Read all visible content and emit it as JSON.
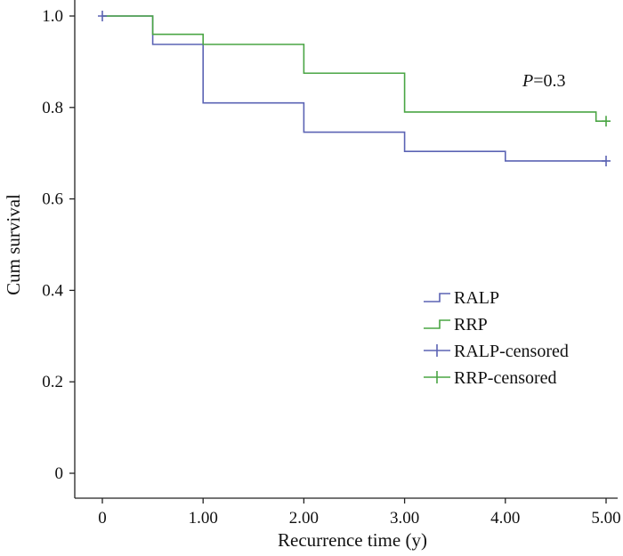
{
  "chart_data": {
    "type": "line",
    "style": "step (Kaplan-Meier survival curve)",
    "title": "",
    "xlabel": "Recurrence time (y)",
    "ylabel": "Cum survival",
    "xlim": [
      0,
      5
    ],
    "ylim": [
      0,
      1
    ],
    "x_ticks": [
      0,
      1,
      2,
      3,
      4,
      5
    ],
    "x_tick_labels": [
      "0",
      "1.00",
      "2.00",
      "3.00",
      "4.00",
      "5.00"
    ],
    "y_ticks": [
      0,
      0.2,
      0.4,
      0.6,
      0.8,
      1.0
    ],
    "y_tick_labels": [
      "0",
      "0.2",
      "0.4",
      "0.6",
      "0.8",
      "1.0"
    ],
    "grid": false,
    "legend_position": "right, lower-middle",
    "annotation": {
      "italic": "P",
      "text": "=0.3"
    },
    "series": [
      {
        "name": "RALP",
        "color": "#5b63b4",
        "steps": [
          [
            0,
            1.0
          ],
          [
            0.5,
            0.938
          ],
          [
            1.0,
            0.81
          ],
          [
            2.0,
            0.746
          ],
          [
            3.0,
            0.704
          ],
          [
            4.0,
            0.683
          ],
          [
            5.0,
            0.683
          ]
        ],
        "censored_name": "RALP-censored",
        "censored": [
          [
            0,
            1.0
          ],
          [
            5.0,
            0.683
          ]
        ]
      },
      {
        "name": "RRP",
        "color": "#4aa544",
        "steps": [
          [
            0,
            1.0
          ],
          [
            0.5,
            0.96
          ],
          [
            1.0,
            0.938
          ],
          [
            2.0,
            0.875
          ],
          [
            3.0,
            0.79
          ],
          [
            4.9,
            0.77
          ],
          [
            5.0,
            0.77
          ]
        ],
        "censored_name": "RRP-censored",
        "censored": [
          [
            5.0,
            0.77
          ]
        ]
      }
    ]
  }
}
